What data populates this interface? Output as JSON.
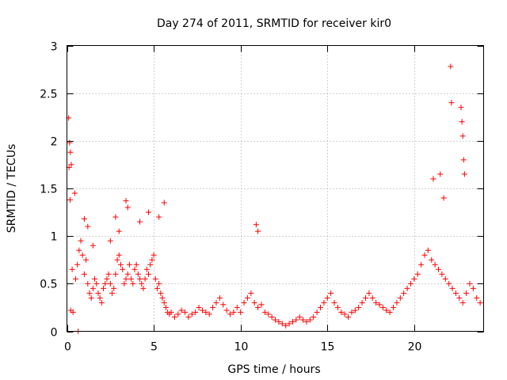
{
  "chart_data": {
    "type": "scatter",
    "title": "Day 274 of 2011, SRMTID for receiver kir0",
    "xlabel": "GPS time / hours",
    "ylabel": "SRMTID / TECUs",
    "xlim": [
      0,
      24
    ],
    "ylim": [
      0,
      3
    ],
    "xticks": [
      0,
      5,
      10,
      15,
      20
    ],
    "yticks": [
      0,
      0.5,
      1,
      1.5,
      2,
      2.5,
      3
    ],
    "xtick_labels": [
      "0",
      "5",
      "10",
      "15",
      "20"
    ],
    "ytick_labels": [
      "0",
      "0.5",
      "1",
      "1.5",
      "2",
      "2.5",
      "3"
    ],
    "grid": true,
    "marker": "+",
    "color": "#ff0000",
    "series": [
      {
        "name": "kir0",
        "x": [
          0.1,
          0.15,
          0.2,
          0.25,
          0.3,
          0.12,
          0.18,
          0.22,
          0.35,
          0.45,
          0.5,
          0.6,
          0.7,
          0.8,
          0.9,
          1.0,
          1.1,
          1.2,
          1.3,
          1.4,
          1.5,
          1.6,
          1.7,
          1.8,
          1.9,
          2.0,
          2.1,
          2.2,
          2.3,
          2.4,
          2.5,
          2.6,
          2.7,
          2.8,
          2.9,
          3.0,
          3.1,
          3.2,
          3.3,
          3.4,
          3.5,
          3.6,
          3.7,
          3.8,
          3.9,
          4.0,
          4.1,
          4.2,
          4.3,
          4.4,
          4.5,
          4.6,
          4.7,
          4.8,
          4.9,
          5.0,
          5.1,
          5.2,
          5.3,
          5.4,
          5.5,
          5.6,
          5.7,
          5.8,
          5.9,
          6.0,
          6.2,
          6.4,
          6.6,
          6.8,
          7.0,
          7.2,
          7.4,
          7.6,
          7.8,
          8.0,
          8.2,
          8.4,
          8.6,
          8.8,
          9.0,
          9.2,
          9.4,
          9.6,
          9.8,
          10.0,
          10.2,
          10.4,
          10.6,
          10.8,
          11.0,
          11.2,
          11.4,
          11.6,
          11.8,
          12.0,
          12.2,
          12.4,
          12.6,
          12.8,
          13.0,
          13.2,
          13.4,
          13.6,
          13.8,
          14.0,
          14.2,
          14.4,
          14.6,
          14.8,
          15.0,
          15.2,
          15.4,
          15.6,
          15.8,
          16.0,
          16.2,
          16.4,
          16.6,
          16.8,
          17.0,
          17.2,
          17.4,
          17.6,
          17.8,
          18.0,
          18.2,
          18.4,
          18.6,
          18.8,
          19.0,
          19.2,
          19.4,
          19.6,
          19.8,
          20.0,
          20.2,
          20.4,
          20.6,
          20.8,
          21.0,
          21.2,
          21.4,
          21.6,
          21.8,
          22.0,
          22.2,
          22.4,
          22.6,
          22.8,
          23.0,
          23.2,
          23.4,
          23.6,
          23.8,
          22.1,
          22.15,
          22.7,
          22.75,
          22.8,
          22.85,
          22.9,
          21.1,
          21.5,
          21.7,
          0.65,
          3.4,
          3.5,
          5.6,
          10.9,
          11.0,
          1.0,
          1.2,
          2.8,
          4.7,
          3.0,
          4.2,
          5.3,
          2.5,
          1.5
        ],
        "y": [
          2.24,
          1.98,
          1.88,
          1.75,
          0.65,
          1.72,
          1.38,
          0.22,
          0.2,
          1.45,
          0.55,
          0.7,
          0.85,
          0.95,
          0.8,
          0.6,
          0.75,
          0.5,
          0.4,
          0.35,
          0.45,
          0.55,
          0.5,
          0.4,
          0.35,
          0.3,
          0.45,
          0.5,
          0.55,
          0.6,
          0.5,
          0.4,
          0.45,
          0.6,
          0.75,
          0.8,
          0.7,
          0.65,
          0.5,
          0.55,
          0.6,
          0.7,
          0.55,
          0.5,
          0.65,
          0.7,
          0.6,
          0.55,
          0.5,
          0.45,
          0.55,
          0.65,
          0.6,
          0.7,
          0.75,
          0.8,
          0.55,
          0.45,
          0.5,
          0.4,
          0.35,
          0.3,
          0.25,
          0.2,
          0.18,
          0.2,
          0.15,
          0.18,
          0.22,
          0.2,
          0.15,
          0.18,
          0.2,
          0.25,
          0.22,
          0.2,
          0.18,
          0.25,
          0.3,
          0.35,
          0.28,
          0.22,
          0.18,
          0.2,
          0.25,
          0.2,
          0.3,
          0.35,
          0.4,
          0.3,
          0.25,
          0.28,
          0.2,
          0.18,
          0.15,
          0.12,
          0.1,
          0.08,
          0.06,
          0.08,
          0.1,
          0.12,
          0.15,
          0.12,
          0.1,
          0.12,
          0.15,
          0.2,
          0.25,
          0.3,
          0.35,
          0.4,
          0.3,
          0.25,
          0.2,
          0.18,
          0.15,
          0.2,
          0.22,
          0.25,
          0.3,
          0.35,
          0.4,
          0.35,
          0.3,
          0.28,
          0.25,
          0.22,
          0.2,
          0.25,
          0.3,
          0.35,
          0.4,
          0.45,
          0.5,
          0.55,
          0.6,
          0.7,
          0.8,
          0.85,
          0.75,
          0.7,
          0.65,
          0.6,
          0.55,
          0.5,
          0.45,
          0.4,
          0.35,
          0.3,
          0.4,
          0.5,
          0.45,
          0.35,
          0.3,
          2.78,
          2.4,
          2.35,
          2.2,
          2.05,
          1.8,
          1.65,
          1.6,
          1.65,
          1.4,
          0.0,
          1.37,
          1.3,
          1.35,
          1.12,
          1.05,
          1.18,
          1.1,
          1.2,
          1.25,
          1.05,
          1.15,
          1.2,
          0.95,
          0.9
        ]
      }
    ]
  }
}
